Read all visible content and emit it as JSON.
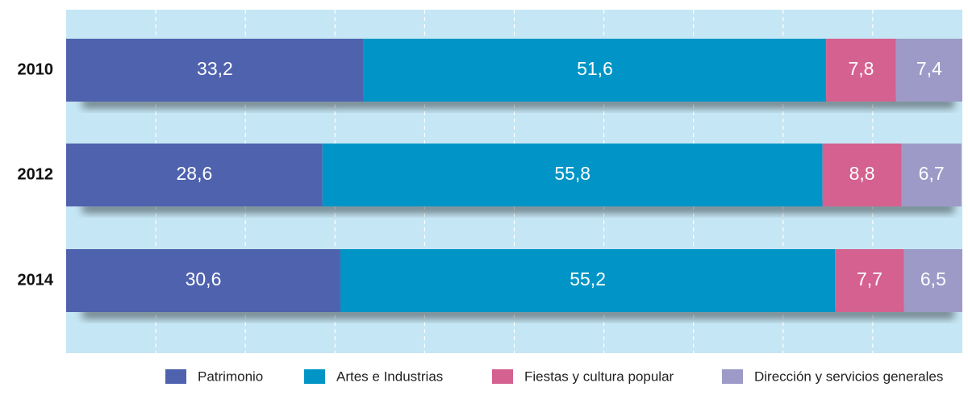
{
  "chart_data": {
    "type": "stacked-barh",
    "categories": [
      "2010",
      "2012",
      "2014"
    ],
    "series": [
      {
        "name": "Patrimonio",
        "color": "#4f62ae",
        "values": [
          33.2,
          28.6,
          30.6
        ],
        "value_labels": [
          "33,2",
          "28,6",
          "30,6"
        ]
      },
      {
        "name": "Artes e Industrias",
        "color": "#0095c6",
        "values": [
          51.6,
          55.8,
          55.2
        ],
        "value_labels": [
          "51,6",
          "55,8",
          "55,2"
        ]
      },
      {
        "name": "Fiestas y cultura popular",
        "color": "#d4618f",
        "values": [
          7.8,
          8.8,
          7.7
        ],
        "value_labels": [
          "7,8",
          "8,8",
          "7,7"
        ]
      },
      {
        "name": "Dirección y servicios generales",
        "color": "#9d9ac8",
        "values": [
          7.4,
          6.7,
          6.5
        ],
        "value_labels": [
          "7,4",
          "6,7",
          "6,5"
        ]
      }
    ],
    "xlim": [
      0,
      100
    ],
    "xticks": [
      10,
      20,
      30,
      40,
      50,
      60,
      70,
      80,
      90
    ],
    "grid": true,
    "legend": "bottom"
  }
}
